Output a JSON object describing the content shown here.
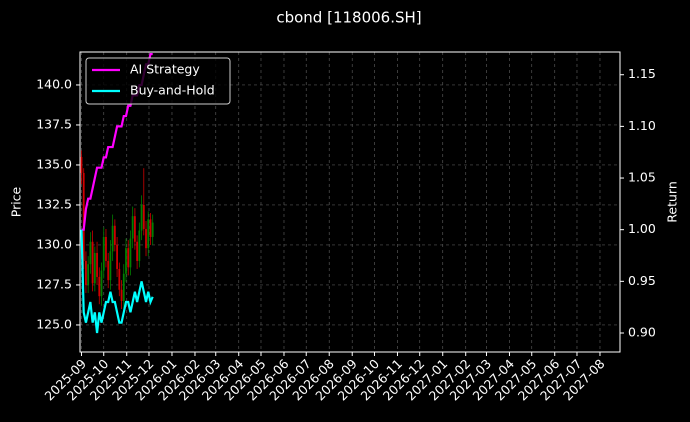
{
  "chart_data": {
    "type": "candlestick",
    "title": "cbond [118006.SH]",
    "ylabel": "Price",
    "y2label": "Return",
    "x": [
      "2025-09-01",
      "2025-09-04",
      "2025-09-07",
      "2025-09-10",
      "2025-09-13",
      "2025-09-16",
      "2025-09-19",
      "2025-09-22",
      "2025-09-25",
      "2025-09-28",
      "2025-10-01",
      "2025-10-04",
      "2025-10-07",
      "2025-10-10",
      "2025-10-13",
      "2025-10-16",
      "2025-10-19",
      "2025-10-22",
      "2025-10-25",
      "2025-10-28",
      "2025-10-31",
      "2025-11-03",
      "2025-11-06",
      "2025-11-09",
      "2025-11-12",
      "2025-11-15",
      "2025-11-18",
      "2025-11-21",
      "2025-11-24",
      "2025-11-27",
      "2025-11-30",
      "2025-12-03",
      "2025-12-06"
    ],
    "open": [
      135.5,
      134.5,
      129.0,
      127.5,
      128.8,
      130.2,
      127.6,
      129.5,
      128.0,
      126.8,
      128.4,
      130.5,
      129.0,
      127.8,
      129.6,
      131.2,
      130.0,
      128.5,
      127.2,
      126.5,
      128.2,
      129.8,
      128.6,
      130.4,
      131.8,
      130.2,
      129.0,
      130.9,
      132.5,
      131.0,
      129.8,
      131.6,
      130.5
    ],
    "high": [
      135.9,
      134.8,
      129.6,
      129.3,
      130.8,
      130.9,
      129.9,
      130.2,
      128.6,
      128.9,
      131.1,
      131.0,
      129.5,
      130.3,
      131.9,
      131.6,
      130.5,
      128.9,
      127.8,
      128.8,
      130.4,
      130.3,
      130.9,
      132.4,
      132.3,
      130.6,
      131.4,
      133.1,
      134.8,
      131.5,
      132.1,
      132.0,
      131.9
    ],
    "low": [
      133.8,
      128.5,
      127.0,
      127.0,
      128.2,
      127.1,
      127.1,
      127.5,
      126.3,
      126.2,
      127.9,
      128.6,
      127.3,
      127.2,
      129.0,
      129.6,
      128.0,
      126.8,
      126.0,
      126.0,
      127.7,
      128.1,
      128.1,
      129.8,
      129.7,
      128.5,
      128.6,
      130.3,
      130.6,
      129.3,
      129.3,
      130.0,
      130.0
    ],
    "close": [
      134.5,
      129.0,
      127.5,
      128.8,
      130.2,
      127.6,
      129.5,
      128.0,
      126.8,
      128.4,
      130.5,
      129.0,
      127.8,
      129.6,
      131.2,
      130.0,
      128.5,
      127.2,
      126.5,
      128.2,
      129.8,
      128.6,
      130.4,
      131.8,
      130.2,
      129.0,
      130.9,
      132.5,
      131.0,
      129.8,
      131.6,
      130.5,
      131.4
    ],
    "up_color": "#008000",
    "down_color": "#d00000",
    "series": [
      {
        "name": "AI Strategy",
        "color": "#ff00ff",
        "axis": "y2",
        "values": [
          1.0,
          1.0,
          1.02,
          1.03,
          1.03,
          1.04,
          1.05,
          1.06,
          1.06,
          1.06,
          1.07,
          1.07,
          1.08,
          1.08,
          1.08,
          1.09,
          1.1,
          1.1,
          1.1,
          1.11,
          1.11,
          1.12,
          1.12,
          1.13,
          1.13,
          1.13,
          1.14,
          1.14,
          1.15,
          1.16,
          1.16,
          1.17,
          1.17
        ]
      },
      {
        "name": "Buy-and-Hold",
        "color": "#00ffff",
        "axis": "y2",
        "values": [
          1.0,
          0.92,
          0.91,
          0.92,
          0.93,
          0.91,
          0.92,
          0.9,
          0.92,
          0.91,
          0.92,
          0.93,
          0.93,
          0.94,
          0.93,
          0.93,
          0.92,
          0.91,
          0.91,
          0.92,
          0.93,
          0.93,
          0.92,
          0.93,
          0.94,
          0.93,
          0.94,
          0.95,
          0.94,
          0.93,
          0.94,
          0.93,
          0.935
        ]
      }
    ],
    "xlim": [
      "2025-08-30",
      "2027-08-28"
    ],
    "xticks": [
      "2025-09",
      "2025-10",
      "2025-11",
      "2025-12",
      "2026-01",
      "2026-02",
      "2026-03",
      "2026-04",
      "2026-05",
      "2026-06",
      "2026-07",
      "2026-08",
      "2026-09",
      "2026-10",
      "2026-11",
      "2026-12",
      "2027-01",
      "2027-02",
      "2027-03",
      "2027-04",
      "2027-05",
      "2027-06",
      "2027-07",
      "2027-08"
    ],
    "ylim": [
      123.31,
      142.06
    ],
    "yticks": [
      {
        "value": 125,
        "label": "125.0"
      },
      {
        "value": 127.5,
        "label": "127.5"
      },
      {
        "value": 130,
        "label": "130.0"
      },
      {
        "value": 132.5,
        "label": "132.5"
      },
      {
        "value": 135,
        "label": "135.0"
      },
      {
        "value": 137.5,
        "label": "137.5"
      },
      {
        "value": 140,
        "label": "140.0"
      }
    ],
    "y2lim": [
      0.8816,
      1.172
    ],
    "y2ticks": [
      {
        "value": 0.9,
        "label": "0.90"
      },
      {
        "value": 0.95,
        "label": "0.95"
      },
      {
        "value": 1,
        "label": "1.00"
      },
      {
        "value": 1.05,
        "label": "1.05"
      },
      {
        "value": 1.1,
        "label": "1.10"
      },
      {
        "value": 1.15,
        "label": "1.15"
      }
    ],
    "grid": true,
    "legend": "upper left"
  }
}
